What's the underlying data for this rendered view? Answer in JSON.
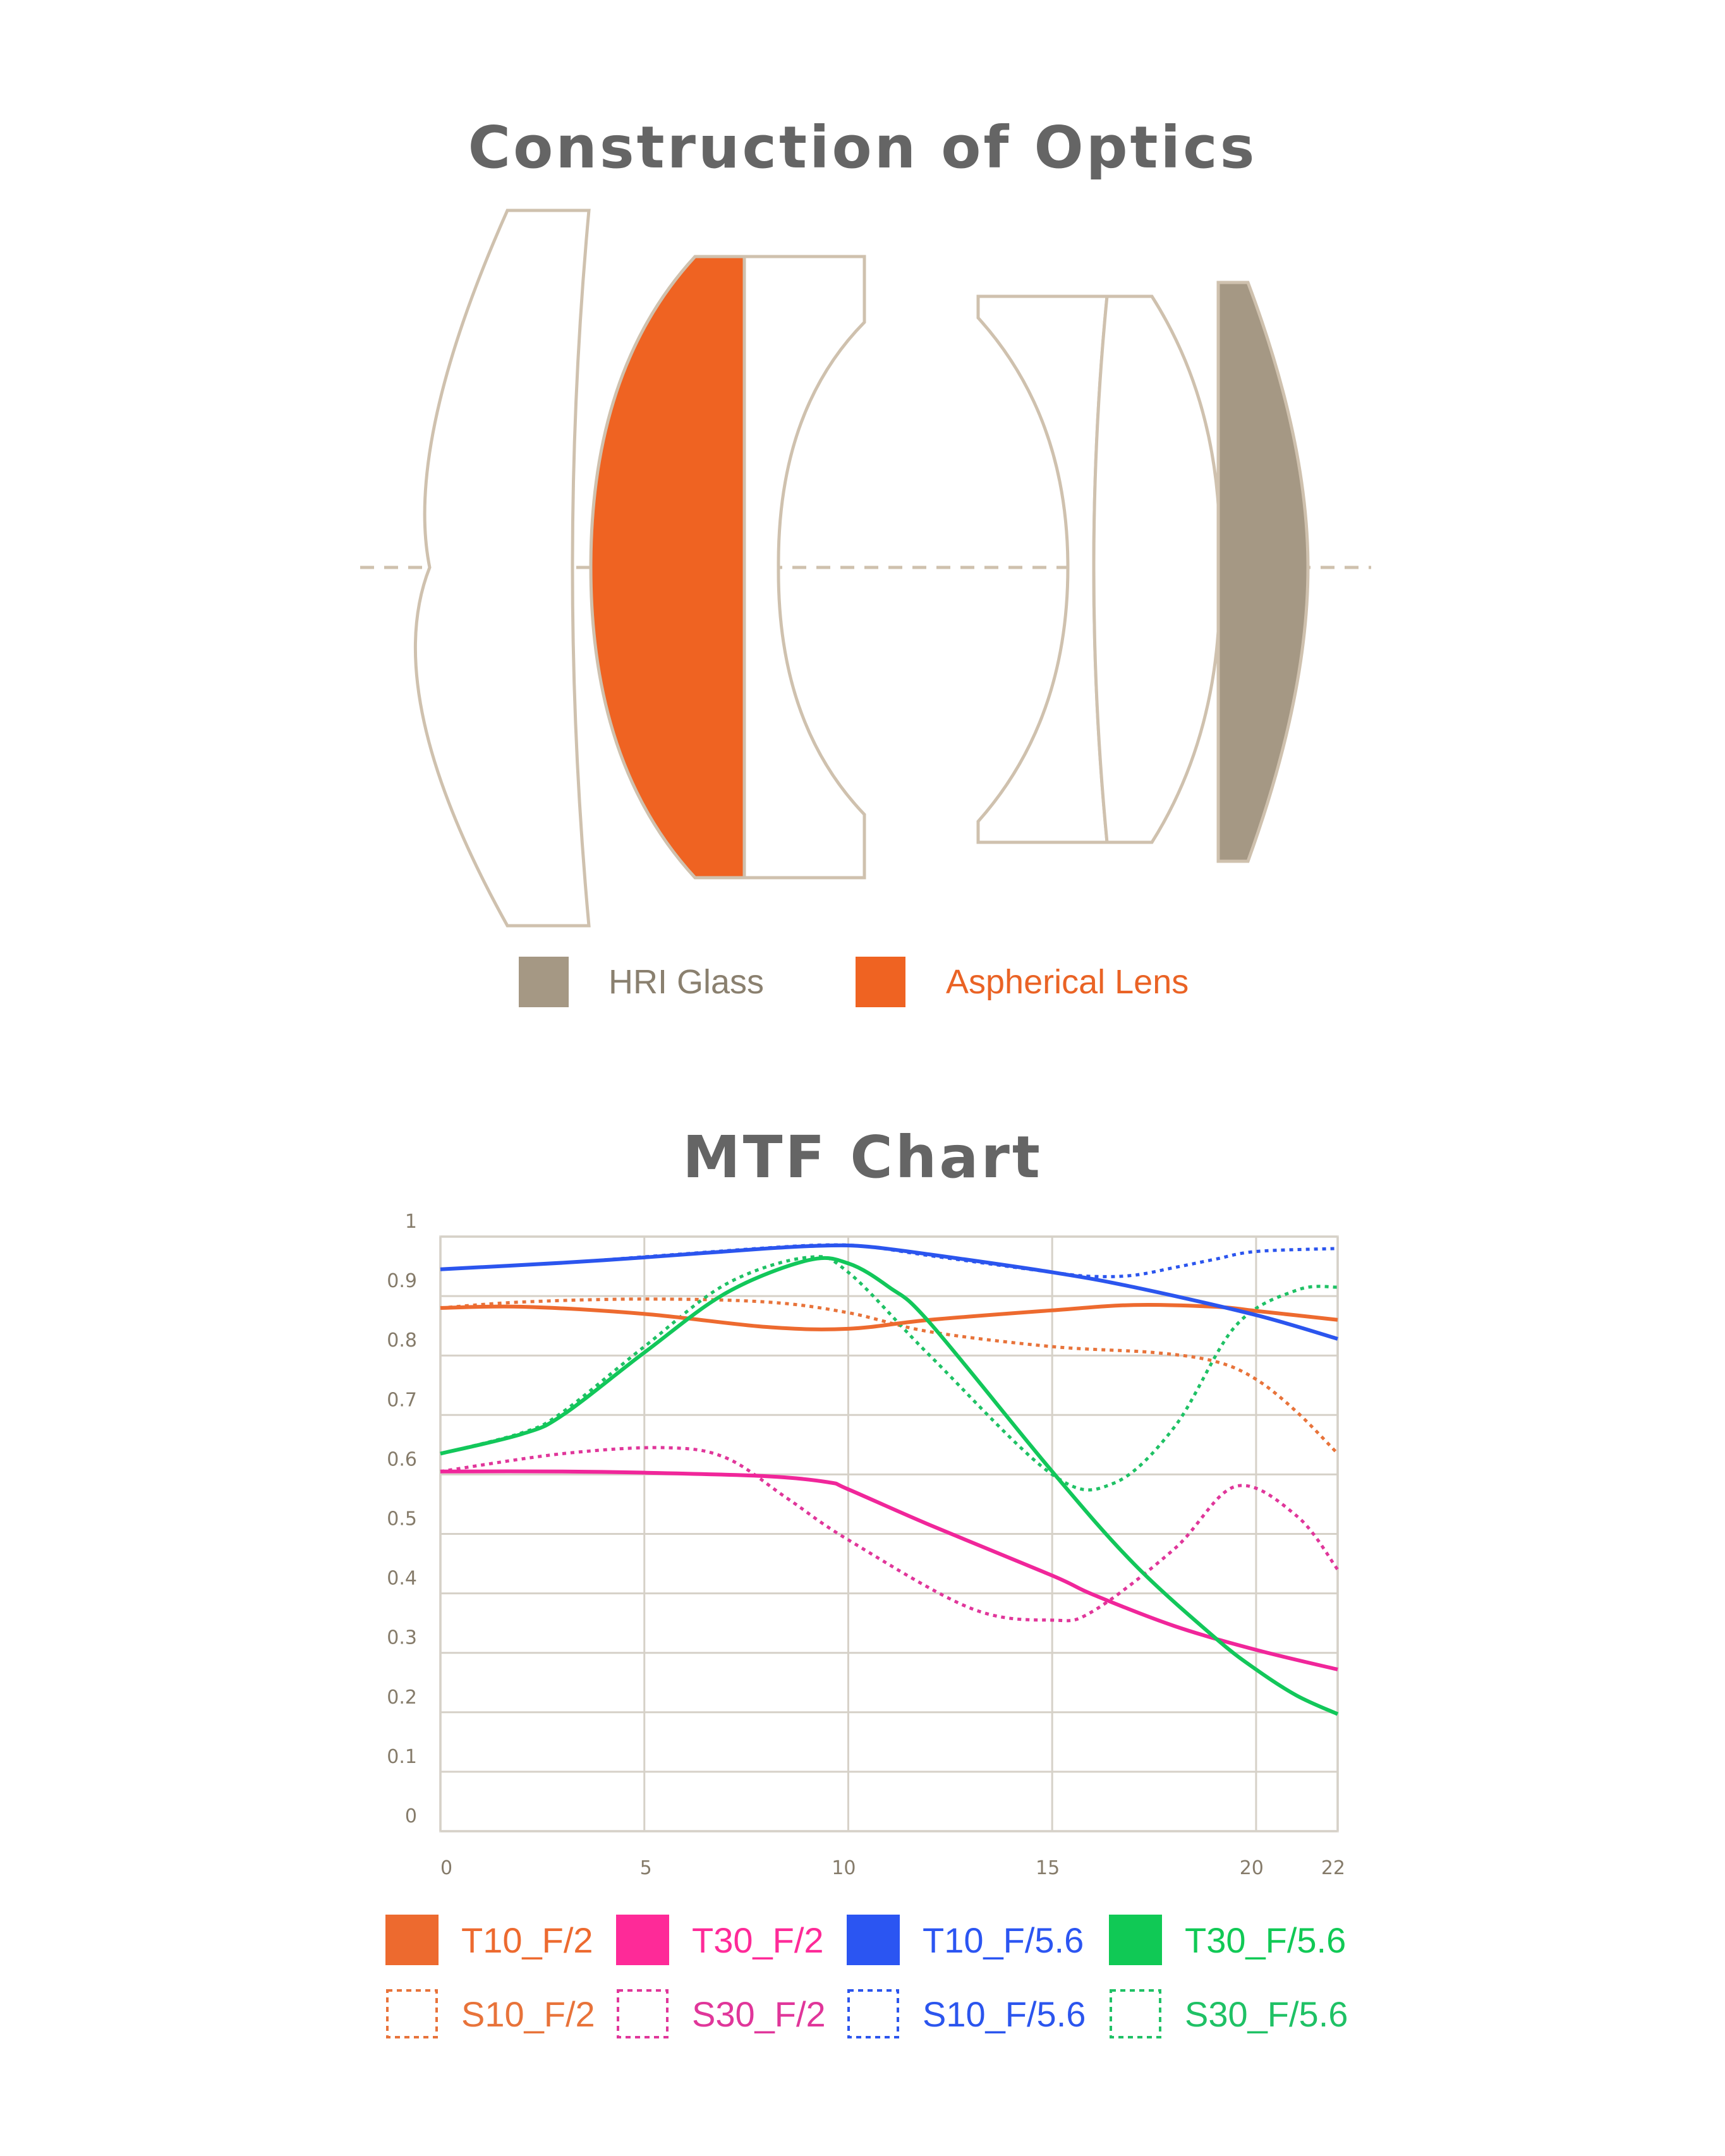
{
  "optics": {
    "title": "Construction of Optics",
    "colors": {
      "outline": "#cfc1ae",
      "hri_glass": "#a59884",
      "aspherical": "#ef6322",
      "axis": "#cfc1ae"
    },
    "legend": [
      {
        "label": "HRI Glass",
        "color": "#a59884",
        "text_color": "#8a806f"
      },
      {
        "label": "Aspherical Lens",
        "color": "#ef6322",
        "text_color": "#ea6325"
      }
    ]
  },
  "mtf": {
    "title": "MTF Chart"
  },
  "chart_data": {
    "type": "line",
    "title": "MTF Chart",
    "xlabel": "",
    "ylabel": "",
    "xlim": [
      0,
      22
    ],
    "ylim": [
      0,
      1
    ],
    "x_ticks": [
      "0",
      "5",
      "10",
      "15",
      "20",
      "22"
    ],
    "x_tick_values": [
      0,
      5,
      10,
      15,
      20,
      22
    ],
    "y_ticks": [
      "0",
      "0.1",
      "0.2",
      "0.3",
      "0.4",
      "0.5",
      "0.6",
      "0.7",
      "0.8",
      "0.9",
      "1"
    ],
    "grid": true,
    "legend_position": "bottom",
    "series": [
      {
        "name": "T10_F/2",
        "style": "solid",
        "color": "#ed6a2f",
        "x": [
          0,
          2,
          5,
          8,
          10,
          12,
          15,
          17,
          19,
          20,
          22
        ],
        "values": [
          0.88,
          0.882,
          0.87,
          0.848,
          0.845,
          0.86,
          0.876,
          0.885,
          0.882,
          0.875,
          0.86
        ]
      },
      {
        "name": "T30_F/2",
        "style": "solid",
        "color": "#f0269a",
        "x": [
          0,
          3,
          5,
          8,
          9.5,
          10,
          12,
          15,
          16,
          18,
          20,
          22
        ],
        "values": [
          0.605,
          0.605,
          0.603,
          0.597,
          0.587,
          0.575,
          0.515,
          0.43,
          0.398,
          0.345,
          0.305,
          0.272
        ]
      },
      {
        "name": "T10_F/5.6",
        "style": "solid",
        "color": "#2b55ee",
        "x": [
          0,
          3,
          5,
          8,
          9.5,
          10.5,
          12,
          15,
          17,
          20,
          22
        ],
        "values": [
          0.945,
          0.956,
          0.965,
          0.98,
          0.985,
          0.983,
          0.97,
          0.94,
          0.915,
          0.868,
          0.828
        ]
      },
      {
        "name": "T30_F/5.6",
        "style": "solid",
        "color": "#12c75a",
        "x": [
          0,
          2,
          3,
          5,
          7,
          9,
          10,
          11,
          12,
          15,
          17,
          19,
          20,
          21,
          22
        ],
        "values": [
          0.635,
          0.668,
          0.7,
          0.805,
          0.905,
          0.96,
          0.955,
          0.915,
          0.855,
          0.605,
          0.45,
          0.325,
          0.272,
          0.228,
          0.197
        ]
      },
      {
        "name": "S10_F/2",
        "style": "dotted",
        "color": "#e8733a",
        "x": [
          0,
          2,
          5,
          8,
          10,
          12,
          15,
          17.5,
          19,
          20,
          21,
          22
        ],
        "values": [
          0.88,
          0.89,
          0.895,
          0.89,
          0.872,
          0.84,
          0.815,
          0.805,
          0.79,
          0.76,
          0.705,
          0.635
        ]
      },
      {
        "name": "S30_F/2",
        "style": "dotted",
        "color": "#e0369a",
        "x": [
          0,
          3,
          5.5,
          7,
          8.5,
          10,
          13,
          15,
          16,
          18,
          19.5,
          21,
          22
        ],
        "values": [
          0.605,
          0.635,
          0.645,
          0.628,
          0.56,
          0.49,
          0.375,
          0.355,
          0.37,
          0.475,
          0.58,
          0.53,
          0.44
        ]
      },
      {
        "name": "S10_F/5.6",
        "style": "dotted",
        "color": "#2b55ee",
        "x": [
          0,
          3,
          5,
          8,
          9.5,
          10.5,
          12,
          15,
          16,
          17,
          18,
          19,
          20,
          22
        ],
        "values": [
          0.945,
          0.956,
          0.966,
          0.981,
          0.986,
          0.983,
          0.968,
          0.94,
          0.933,
          0.935,
          0.948,
          0.962,
          0.975,
          0.98
        ]
      },
      {
        "name": "S30_F/5.6",
        "style": "dotted",
        "color": "#1fc165",
        "x": [
          0,
          2,
          3,
          5,
          7,
          9,
          10,
          12,
          15,
          16.5,
          18,
          19.5,
          21,
          22
        ],
        "values": [
          0.635,
          0.67,
          0.705,
          0.815,
          0.92,
          0.965,
          0.94,
          0.8,
          0.6,
          0.585,
          0.68,
          0.85,
          0.91,
          0.915
        ]
      }
    ]
  },
  "mtf_legend": {
    "rows": [
      [
        {
          "label": "T10_F/2",
          "color": "#ed6a2f",
          "style": "solid"
        },
        {
          "label": "T30_F/2",
          "color": "#fe2a98",
          "style": "solid"
        },
        {
          "label": "T10_F/5.6",
          "color": "#2b55f2",
          "style": "solid"
        },
        {
          "label": "T30_F/5.6",
          "color": "#10c955",
          "style": "solid"
        }
      ],
      [
        {
          "label": "S10_F/2",
          "color": "#e8733a",
          "style": "dotted"
        },
        {
          "label": "S30_F/2",
          "color": "#e0369a",
          "style": "dotted"
        },
        {
          "label": "S10_F/5.6",
          "color": "#2b55ee",
          "style": "dotted"
        },
        {
          "label": "S30_F/5.6",
          "color": "#1fc165",
          "style": "dotted"
        }
      ]
    ]
  }
}
